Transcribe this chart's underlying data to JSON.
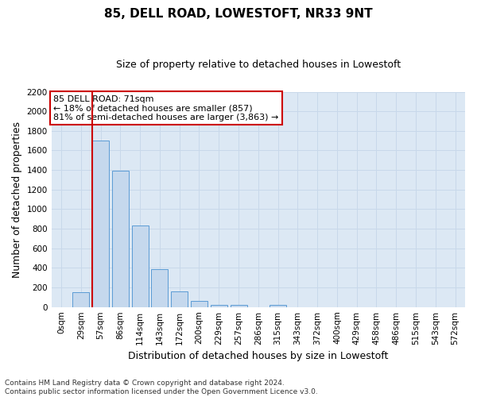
{
  "title": "85, DELL ROAD, LOWESTOFT, NR33 9NT",
  "subtitle": "Size of property relative to detached houses in Lowestoft",
  "xlabel": "Distribution of detached houses by size in Lowestoft",
  "ylabel": "Number of detached properties",
  "bar_labels": [
    "0sqm",
    "29sqm",
    "57sqm",
    "86sqm",
    "114sqm",
    "143sqm",
    "172sqm",
    "200sqm",
    "229sqm",
    "257sqm",
    "286sqm",
    "315sqm",
    "343sqm",
    "372sqm",
    "400sqm",
    "429sqm",
    "458sqm",
    "486sqm",
    "515sqm",
    "543sqm",
    "572sqm"
  ],
  "bar_values": [
    0,
    155,
    1700,
    1390,
    835,
    385,
    160,
    65,
    25,
    20,
    0,
    25,
    0,
    0,
    0,
    0,
    0,
    0,
    0,
    0,
    0
  ],
  "bar_color": "#c5d8ed",
  "bar_edge_color": "#5b9bd5",
  "vline_x_index": 2,
  "vline_color": "#cc0000",
  "annotation_text": "85 DELL ROAD: 71sqm\n← 18% of detached houses are smaller (857)\n81% of semi-detached houses are larger (3,863) →",
  "annotation_box_color": "#ffffff",
  "annotation_box_edge": "#cc0000",
  "ylim": [
    0,
    2200
  ],
  "yticks": [
    0,
    200,
    400,
    600,
    800,
    1000,
    1200,
    1400,
    1600,
    1800,
    2000,
    2200
  ],
  "grid_color": "#c8d8ea",
  "background_color": "#dce8f4",
  "footer_text": "Contains HM Land Registry data © Crown copyright and database right 2024.\nContains public sector information licensed under the Open Government Licence v3.0.",
  "title_fontsize": 11,
  "subtitle_fontsize": 9,
  "ylabel_fontsize": 9,
  "xlabel_fontsize": 9,
  "tick_fontsize": 7.5,
  "annotation_fontsize": 8,
  "footer_fontsize": 6.5
}
